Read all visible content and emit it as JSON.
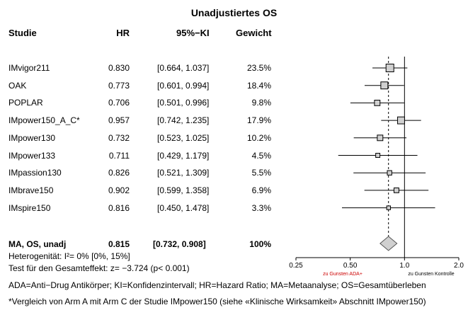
{
  "chart_data": {
    "type": "forest",
    "title": "Unadjustiertes OS",
    "columns": {
      "study": "Studie",
      "hr": "HR",
      "ci": "95%−KI",
      "weight": "Gewicht"
    },
    "rows": [
      {
        "study": "IMvigor211",
        "hr": 0.83,
        "hr_text": "0.830",
        "lo": 0.664,
        "hi": 1.037,
        "ci_text": "[0.664, 1.037]",
        "weight": 23.5,
        "weight_text": "23.5%"
      },
      {
        "study": "OAK",
        "hr": 0.773,
        "hr_text": "0.773",
        "lo": 0.601,
        "hi": 0.994,
        "ci_text": "[0.601, 0.994]",
        "weight": 18.4,
        "weight_text": "18.4%"
      },
      {
        "study": "POPLAR",
        "hr": 0.706,
        "hr_text": "0.706",
        "lo": 0.501,
        "hi": 0.996,
        "ci_text": "[0.501, 0.996]",
        "weight": 9.8,
        "weight_text": "9.8%"
      },
      {
        "study": "IMpower150_A_C*",
        "hr": 0.957,
        "hr_text": "0.957",
        "lo": 0.742,
        "hi": 1.235,
        "ci_text": "[0.742, 1.235]",
        "weight": 17.9,
        "weight_text": "17.9%"
      },
      {
        "study": "IMpower130",
        "hr": 0.732,
        "hr_text": "0.732",
        "lo": 0.523,
        "hi": 1.025,
        "ci_text": "[0.523, 1.025]",
        "weight": 10.2,
        "weight_text": "10.2%"
      },
      {
        "study": "IMpower133",
        "hr": 0.711,
        "hr_text": "0.711",
        "lo": 0.429,
        "hi": 1.179,
        "ci_text": "[0.429, 1.179]",
        "weight": 4.5,
        "weight_text": "4.5%"
      },
      {
        "study": "IMpassion130",
        "hr": 0.826,
        "hr_text": "0.826",
        "lo": 0.521,
        "hi": 1.309,
        "ci_text": "[0.521, 1.309]",
        "weight": 5.5,
        "weight_text": "5.5%"
      },
      {
        "study": "IMbrave150",
        "hr": 0.902,
        "hr_text": "0.902",
        "lo": 0.599,
        "hi": 1.358,
        "ci_text": "[0.599, 1.358]",
        "weight": 6.9,
        "weight_text": "6.9%"
      },
      {
        "study": "IMspire150",
        "hr": 0.816,
        "hr_text": "0.816",
        "lo": 0.45,
        "hi": 1.478,
        "ci_text": "[0.450, 1.478]",
        "weight": 3.3,
        "weight_text": "3.3%"
      }
    ],
    "summary": {
      "label": "MA, OS, unadj",
      "hr": 0.815,
      "hr_text": "0.815",
      "lo": 0.732,
      "hi": 0.908,
      "ci_text": "[0.732, 0.908]",
      "weight_text": "100%"
    },
    "x_scale": "log",
    "xlim": [
      0.25,
      2.0
    ],
    "x_ticks": [
      {
        "value": 0.25,
        "label": "0.25"
      },
      {
        "value": 0.5,
        "label": "0.50"
      },
      {
        "value": 1.0,
        "label": "1.0"
      },
      {
        "value": 2.0,
        "label": "2.0"
      }
    ],
    "reference_line": 1.0,
    "favors_left": "zu Gunsten ADA+",
    "favors_right": "zu Gunsten Kontrolle",
    "favors_left_color": "#cc0000",
    "favors_right_color": "#000000",
    "box_fill": "#d0d0d0",
    "diamond_fill": "#d0d0d0"
  },
  "footer": {
    "heterogeneity": "Heterogenität: I²= 0% [0%, 15%]",
    "overall_test": "Test für den Gesamteffekt: z= −3.724 (p< 0.001)",
    "abbreviations": "ADA=Anti−Drug Antikörper; KI=Konfidenzintervall; HR=Hazard Ratio; MA=Metaanalyse; OS=Gesamtüberleben",
    "note": "*Vergleich von Arm A mit Arm C der Studie IMpower150 (siehe «Klinische Wirksamkeit» Abschnitt IMpower150)"
  }
}
